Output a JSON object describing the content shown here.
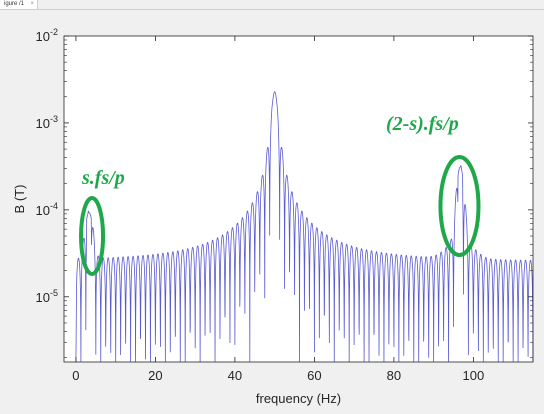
{
  "window": {
    "tab_label": "igure /1",
    "tab_close": "×"
  },
  "colors": {
    "line": "#5a5ad2",
    "annotation": "#1ea84a",
    "axes_bg": "#ffffff",
    "axis": "#262626"
  },
  "chart_data": {
    "type": "line",
    "title": "",
    "xlabel": "frequency (Hz)",
    "ylabel": "B (T)",
    "xlim": [
      -3,
      115
    ],
    "ylim_log10": [
      -5.75,
      -2
    ],
    "yscale": "log",
    "grid": false,
    "x_ticks": [
      0,
      20,
      40,
      60,
      80,
      100
    ],
    "x_tick_labels": [
      "0",
      "20",
      "40",
      "60",
      "80",
      "100"
    ],
    "y_ticks": [
      -5,
      -4,
      -3,
      -2
    ],
    "y_tick_labels": [
      {
        "base": "10",
        "exp": "-5"
      },
      {
        "base": "10",
        "exp": "-4"
      },
      {
        "base": "10",
        "exp": "-3"
      },
      {
        "base": "10",
        "exp": "-2"
      }
    ],
    "series": [
      {
        "peaks": [
          {
            "x": 3.3,
            "y": 7e-05
          },
          {
            "x": 50,
            "y": 0.0022
          },
          {
            "x": 96.7,
            "y": 0.00028
          }
        ]
      }
    ],
    "annotations": [
      {
        "text": "s.fs/p",
        "x": 3.3
      },
      {
        "text": "(2-s).fs/p",
        "x": 96.5
      }
    ]
  }
}
